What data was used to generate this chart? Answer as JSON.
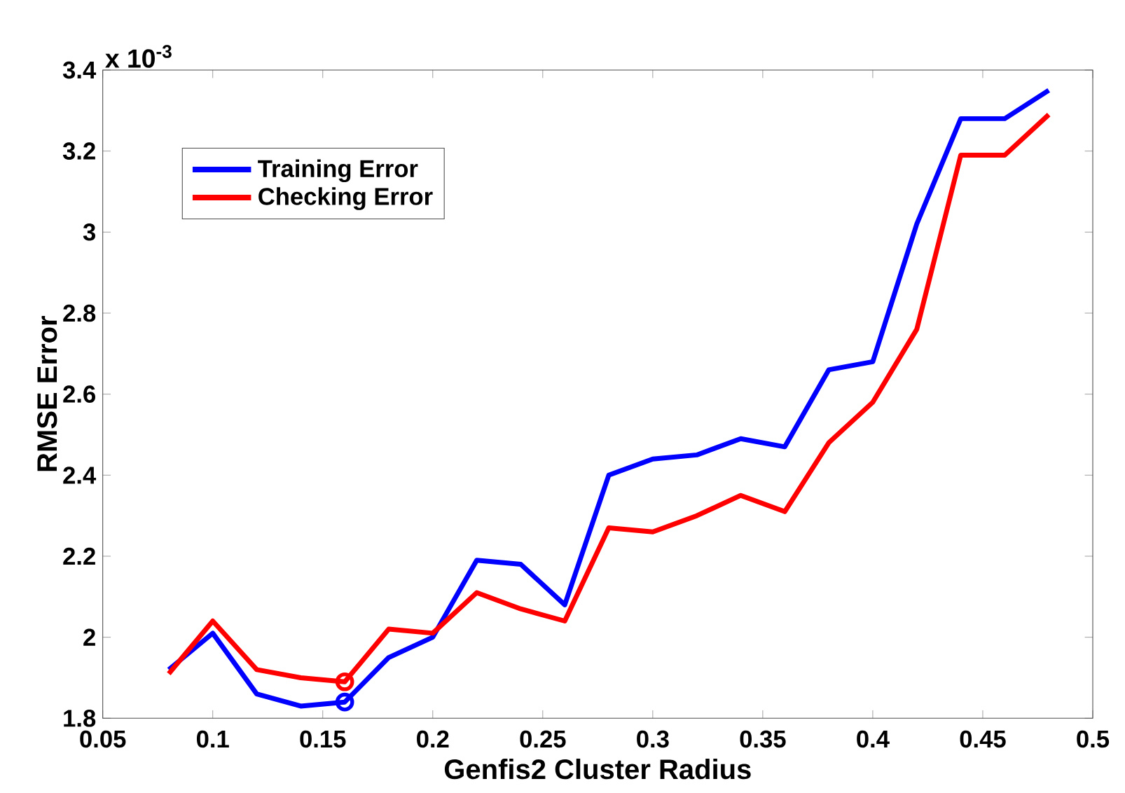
{
  "chart_data": {
    "type": "line",
    "xlabel": "Genfis2 Cluster Radius",
    "ylabel": "RMSE Error",
    "annotations": [
      "x 10$^{-3}$"
    ],
    "xlim": [
      0.05,
      0.5
    ],
    "xticks": [
      0.05,
      0.1,
      0.15,
      0.2,
      0.25,
      0.3,
      0.35,
      0.4,
      0.45,
      0.5
    ],
    "ylim": [
      1.8,
      3.4
    ],
    "yticks": [
      1.8,
      2,
      2.2,
      2.4,
      2.6,
      2.8,
      3,
      3.2,
      3.4
    ],
    "legend": "top left",
    "grid": false,
    "line_style": "solid",
    "series": [
      {
        "name": "Training Error",
        "color": "#0000ff",
        "x": [
          0.08,
          0.1,
          0.12,
          0.14,
          0.16,
          0.18,
          0.2,
          0.22,
          0.24,
          0.26,
          0.28,
          0.3,
          0.32,
          0.34,
          0.36,
          0.38,
          0.4,
          0.42,
          0.44,
          0.46,
          0.48
        ],
        "values": [
          1.92,
          2.01,
          1.86,
          1.83,
          1.84,
          1.95,
          2.0,
          2.19,
          2.18,
          2.08,
          2.4,
          2.44,
          2.45,
          2.49,
          2.47,
          2.66,
          2.68,
          3.02,
          3.28,
          3.28,
          3.35
        ]
      },
      {
        "name": "Checking Error",
        "color": "#ff0000",
        "x": [
          0.08,
          0.1,
          0.12,
          0.14,
          0.16,
          0.18,
          0.2,
          0.22,
          0.24,
          0.26,
          0.28,
          0.3,
          0.32,
          0.34,
          0.36,
          0.38,
          0.4,
          0.42,
          0.44,
          0.46,
          0.48
        ],
        "values": [
          1.91,
          2.04,
          1.92,
          1.9,
          1.89,
          2.02,
          2.01,
          2.11,
          2.07,
          2.04,
          2.27,
          2.26,
          2.3,
          2.35,
          2.31,
          2.48,
          2.58,
          2.76,
          3.19,
          3.19,
          3.29
        ]
      },
      {
        "type": "scatter",
        "marker": "circle",
        "color": "#0000ff",
        "x": [
          0.16
        ],
        "values": [
          1.84
        ]
      },
      {
        "type": "scatter",
        "marker": "circle",
        "color": "#ff0000",
        "x": [
          0.16
        ],
        "values": [
          1.89
        ]
      }
    ]
  }
}
